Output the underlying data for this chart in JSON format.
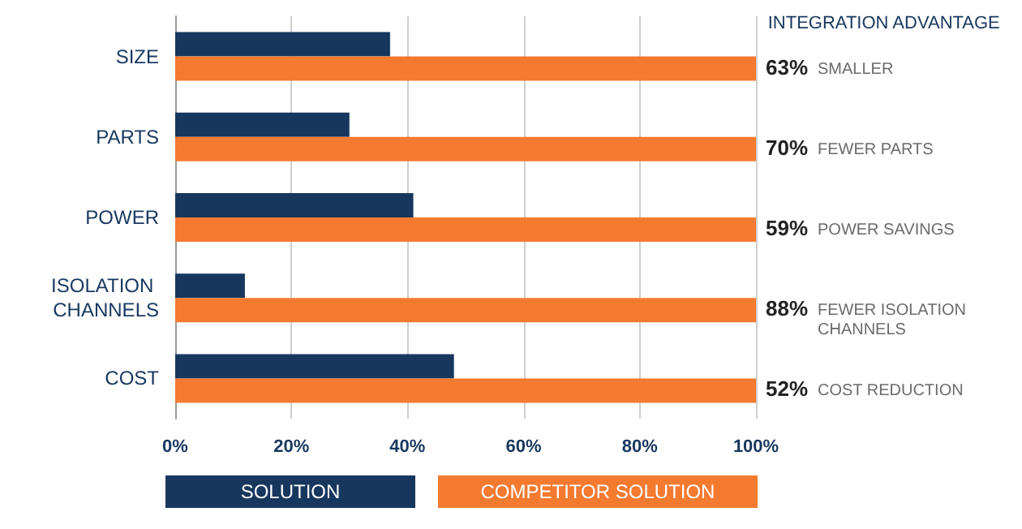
{
  "chart_data": {
    "type": "bar",
    "orientation": "horizontal",
    "title": "INTEGRATION ADVANTAGE",
    "categories": [
      "SIZE",
      "PARTS",
      "POWER",
      "ISOLATION CHANNELS",
      "COST"
    ],
    "series": [
      {
        "name": "SOLUTION",
        "color": "#17375e",
        "values": [
          37,
          30,
          41,
          12,
          48
        ]
      },
      {
        "name": "COMPETITOR SOLUTION",
        "color": "#f47a30",
        "values": [
          100,
          100,
          100,
          100,
          100
        ]
      }
    ],
    "xlim": [
      0,
      100
    ],
    "xticks": [
      {
        "value": 0,
        "label": "0%"
      },
      {
        "value": 20,
        "label": "20%"
      },
      {
        "value": 40,
        "label": "40%"
      },
      {
        "value": 60,
        "label": "60%"
      },
      {
        "value": 80,
        "label": "80%"
      },
      {
        "value": 100,
        "label": "100%"
      }
    ],
    "grid": "x",
    "legend": "bottom",
    "annotations": [
      "63% SMALLER",
      "70% FEWER PARTS",
      "59% POWER SAVINGS",
      "88% FEWER ISOLATION CHANNELS",
      "52% COST REDUCTION"
    ]
  }
}
